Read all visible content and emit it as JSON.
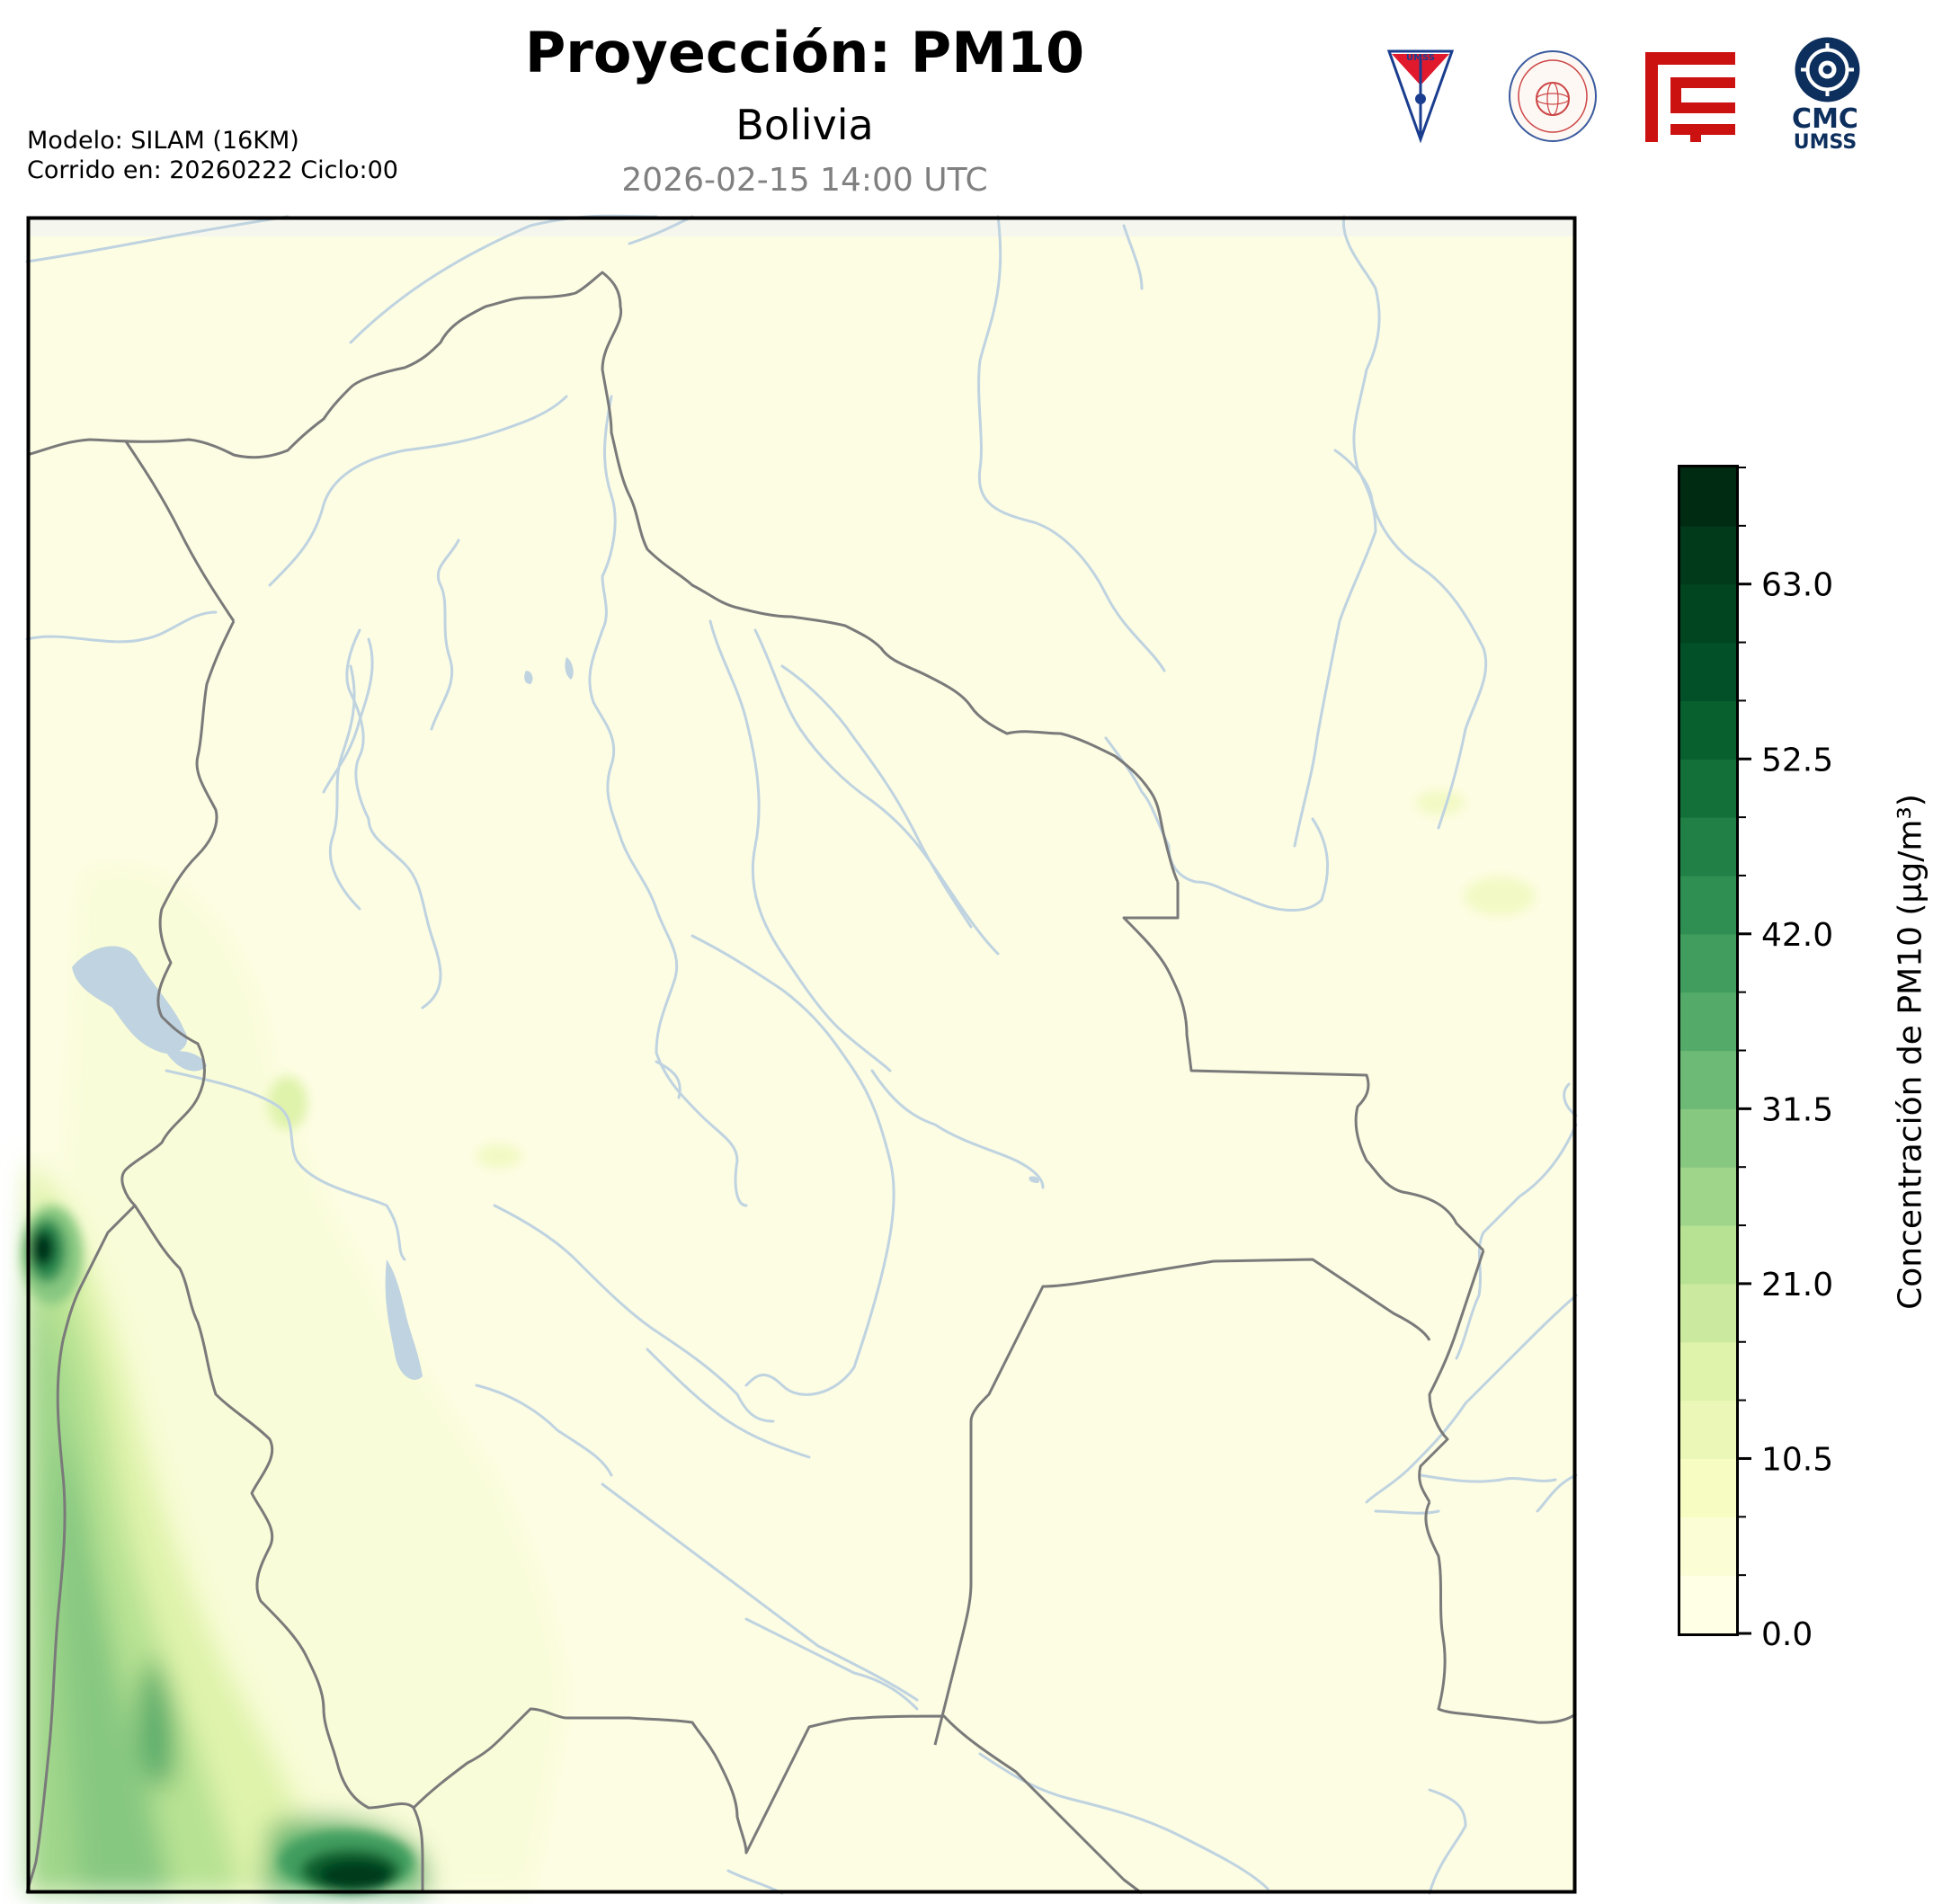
{
  "header": {
    "title": "Proyección: PM10",
    "subtitle": "Bolivia",
    "datetime": "2026-02-15 14:00 UTC"
  },
  "model_info": {
    "line1": "Modelo: SILAM (16KM)",
    "line2": "Corrido en: 20260222 Ciclo:00"
  },
  "logos": {
    "umss_text": "UMSS",
    "cmc_line1": "CMC",
    "cmc_line2": "UMSS"
  },
  "colorbar": {
    "label": "Concentración de PM10 (μg/m³)",
    "min": 0.0,
    "max": 70.0,
    "step": 3.5,
    "tick_labels": [
      "0.0",
      "10.5",
      "21.0",
      "31.5",
      "42.0",
      "52.5",
      "63.0"
    ],
    "colors": [
      "#ffffe5",
      "#fbfdd4",
      "#f7fcc3",
      "#ebf7b7",
      "#dff3ab",
      "#cbea9f",
      "#b7e293",
      "#9fd58a",
      "#87c881",
      "#6db976",
      "#54aa69",
      "#419d5e",
      "#2f8e52",
      "#208046",
      "#137039",
      "#08602f",
      "#025027",
      "#004520",
      "#003a1b",
      "#002b13"
    ]
  },
  "map": {
    "background_color": "#fdfde4",
    "border_color": "#7a7a7a",
    "river_color": "#bfd3e0"
  }
}
